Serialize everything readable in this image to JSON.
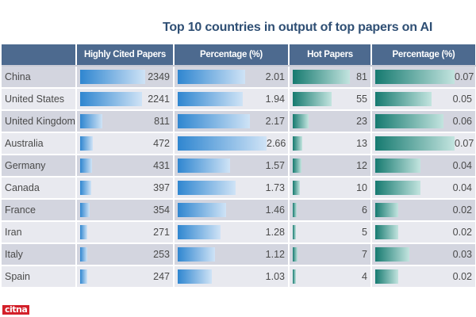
{
  "chart_data": {
    "type": "table",
    "title": "Top 10 countries in output of top papers on AI",
    "columns": [
      "",
      "Highly Cited Papers",
      "Percentage (%)",
      "Hot Papers",
      "Percentage (%)"
    ],
    "rows": [
      {
        "country": "China",
        "highly_cited": 2349,
        "hc_pct": "2.01",
        "hot": 81,
        "hot_pct": "0.07"
      },
      {
        "country": "United States",
        "highly_cited": 2241,
        "hc_pct": "1.94",
        "hot": 55,
        "hot_pct": "0.05"
      },
      {
        "country": "United Kingdom",
        "highly_cited": 811,
        "hc_pct": "2.17",
        "hot": 23,
        "hot_pct": "0.06"
      },
      {
        "country": "Australia",
        "highly_cited": 472,
        "hc_pct": "2.66",
        "hot": 13,
        "hot_pct": "0.07"
      },
      {
        "country": "Germany",
        "highly_cited": 431,
        "hc_pct": "1.57",
        "hot": 12,
        "hot_pct": "0.04"
      },
      {
        "country": "Canada",
        "highly_cited": 397,
        "hc_pct": "1.73",
        "hot": 10,
        "hot_pct": "0.04"
      },
      {
        "country": "France",
        "highly_cited": 354,
        "hc_pct": "1.46",
        "hot": 6,
        "hot_pct": "0.02"
      },
      {
        "country": "Iran",
        "highly_cited": 271,
        "hc_pct": "1.28",
        "hot": 5,
        "hot_pct": "0.02"
      },
      {
        "country": "Italy",
        "highly_cited": 253,
        "hc_pct": "1.12",
        "hot": 7,
        "hot_pct": "0.03"
      },
      {
        "country": "Spain",
        "highly_cited": 247,
        "hc_pct": "1.03",
        "hot": 4,
        "hot_pct": "0.02"
      }
    ],
    "colors": {
      "header": "#4d6a8f",
      "blue_bar": "#2f86d0",
      "teal_bar": "#167a70",
      "title": "#2f4f74"
    }
  },
  "logo": {
    "text": "citna"
  }
}
